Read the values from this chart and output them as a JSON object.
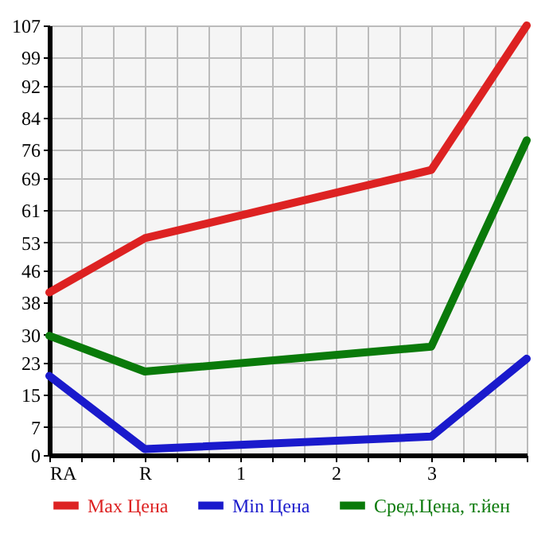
{
  "chart_data": {
    "type": "line",
    "categories": [
      "RA",
      "R",
      "1",
      "2",
      "3",
      null
    ],
    "series": [
      {
        "name": "Max Цена",
        "color": "#dd2222",
        "values": [
          40.5,
          54,
          null,
          null,
          71,
          107
        ]
      },
      {
        "name": "Min Цена",
        "color": "#1a1acc",
        "values": [
          19.7,
          1.5,
          null,
          null,
          4.6,
          24
        ]
      },
      {
        "name": "Сред.Цена, т.йен",
        "color": "#0a7a0a",
        "values": [
          29.7,
          20.8,
          null,
          null,
          27,
          78.4
        ]
      }
    ],
    "ylim": [
      0,
      107
    ],
    "yticks": [
      0,
      7,
      15,
      23,
      30,
      38,
      46,
      53,
      61,
      69,
      76,
      84,
      92,
      99,
      107
    ],
    "grid": true,
    "legend": "bottom",
    "marker": "none",
    "line_style": "solid"
  }
}
